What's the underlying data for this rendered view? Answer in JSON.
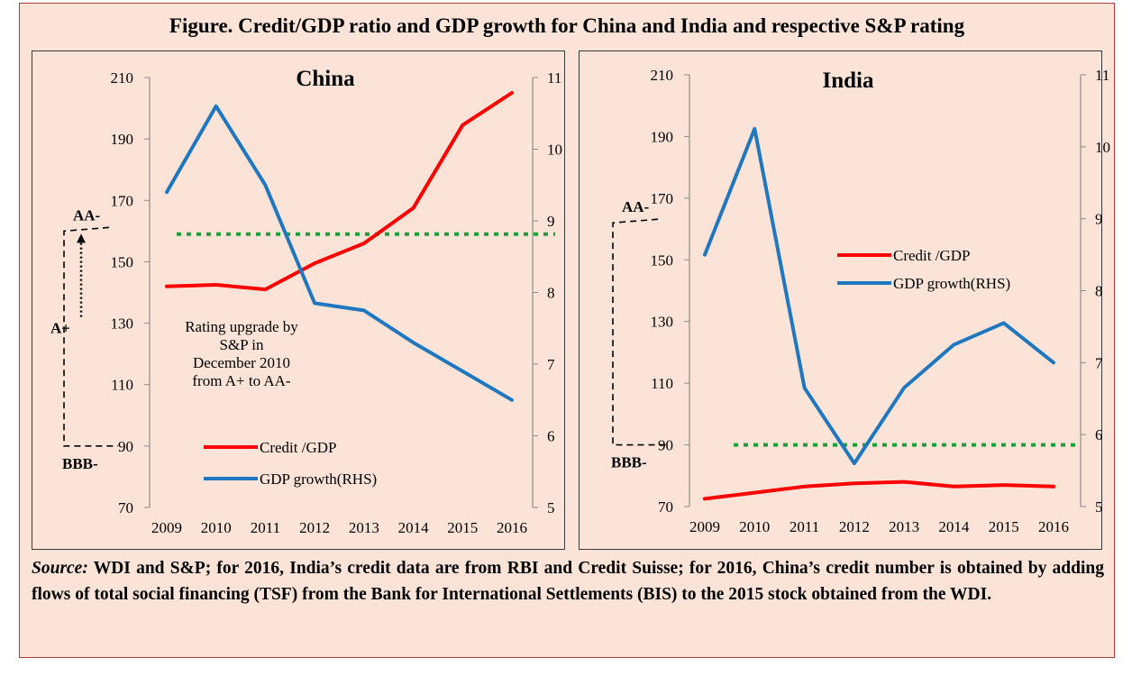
{
  "figure_title": "Figure. Credit/GDP ratio and GDP growth for China and India and respective S&P rating",
  "source": {
    "label": "Source:",
    "text": " WDI and S&P; for 2016, India’s credit data are from RBI and Credit Suisse; for 2016, China’s credit number is obtained by adding flows of total social financing (TSF) from the Bank for International Settlements (BIS) to the 2015 stock obtained from the WDI."
  },
  "colors": {
    "credit": "#ff0000",
    "gdp": "#1f77c0",
    "rating": "#1ca03a",
    "axis": "#8c8c8c",
    "background": "#fbe4d7"
  },
  "chart_data": [
    {
      "type": "line",
      "title": "China",
      "x": [
        "2009",
        "2010",
        "2011",
        "2012",
        "2013",
        "2014",
        "2015",
        "2016"
      ],
      "y_left": {
        "ylim": [
          70,
          210
        ],
        "ticks": [
          "70",
          "90",
          "110",
          "130",
          "150",
          "170",
          "190",
          "210"
        ]
      },
      "y_right": {
        "ylim": [
          5,
          11
        ],
        "ticks": [
          "5",
          "6",
          "7",
          "8",
          "9",
          "10",
          "11"
        ]
      },
      "series": [
        {
          "name": "Credit /GDP",
          "axis": "left",
          "color": "#ff0000",
          "values": [
            142,
            142.5,
            141,
            149.5,
            156,
            167.5,
            194.5,
            205
          ]
        },
        {
          "name": "GDP growth(RHS)",
          "axis": "right",
          "color": "#1f77c0",
          "values": [
            9.4,
            10.6,
            9.5,
            7.85,
            7.75,
            7.3,
            6.9,
            6.5
          ]
        }
      ],
      "rating_line": {
        "axis": "left",
        "value": 159,
        "color": "#1ca03a"
      },
      "rating_labels": {
        "top": "AA-",
        "mid": "A+",
        "bottom": "BBB-",
        "top_value": 160,
        "mid_value": 128.5,
        "bottom_value": 90
      },
      "annotation": [
        "Rating upgrade by",
        "S&P  in",
        "December 2010",
        "from A+ to AA-"
      ],
      "legend": "bottom-center"
    },
    {
      "type": "line",
      "title": "India",
      "x": [
        "2009",
        "2010",
        "2011",
        "2012",
        "2013",
        "2014",
        "2015",
        "2016"
      ],
      "y_left": {
        "ylim": [
          70,
          210
        ],
        "ticks": [
          "70",
          "90",
          "110",
          "130",
          "150",
          "170",
          "190",
          "210"
        ]
      },
      "y_right": {
        "ylim": [
          5,
          11
        ],
        "ticks": [
          "5",
          "6",
          "7",
          "8",
          "9",
          "10",
          "11"
        ]
      },
      "series": [
        {
          "name": "Credit /GDP",
          "axis": "left",
          "color": "#ff0000",
          "values": [
            72.5,
            74.5,
            76.5,
            77.5,
            78,
            76.5,
            77,
            76.5
          ]
        },
        {
          "name": "GDP growth(RHS)",
          "axis": "right",
          "color": "#1f77c0",
          "values": [
            8.5,
            10.25,
            6.65,
            5.6,
            6.65,
            7.25,
            7.55,
            7.0
          ]
        }
      ],
      "rating_line": {
        "axis": "left",
        "value": 90,
        "color": "#1ca03a"
      },
      "rating_labels": {
        "top": "AA-",
        "bottom": "BBB-",
        "top_value": 162,
        "bottom_value": 90
      },
      "legend": "center-right"
    }
  ]
}
